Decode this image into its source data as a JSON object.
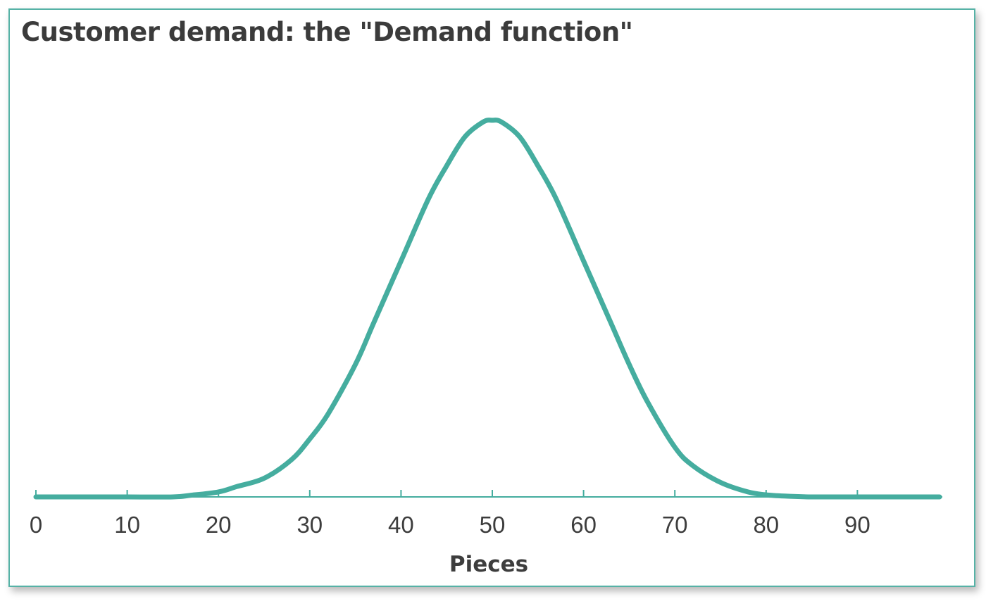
{
  "chart_data": {
    "type": "line",
    "title": "Customer demand: the \"Demand function\"",
    "xlabel": "Pieces",
    "ylabel": "",
    "xlim": [
      0,
      99
    ],
    "xticks": [
      0,
      10,
      20,
      30,
      40,
      50,
      60,
      70,
      80,
      90
    ],
    "tick_labels": [
      "0",
      "10",
      "20",
      "30",
      "40",
      "50",
      "60",
      "70",
      "80",
      "90"
    ],
    "y_axis_shown": false,
    "grid": false,
    "legend": "none",
    "colors": {
      "line": "#45ad9f",
      "axis": "#45ad9f",
      "frame": "#56b2a6",
      "text": "#3d3d3d"
    },
    "series": [
      {
        "x": [
          0,
          5,
          10,
          15,
          17,
          20,
          22,
          25,
          28,
          30,
          32,
          35,
          37,
          40,
          43,
          45,
          47,
          49,
          50,
          51,
          53,
          55,
          57,
          60,
          63,
          65,
          67,
          70,
          72,
          75,
          78,
          80,
          82,
          85,
          90,
          95,
          99
        ],
        "y": [
          0,
          0,
          0,
          0,
          0.004,
          0.012,
          0.025,
          0.045,
          0.09,
          0.14,
          0.2,
          0.32,
          0.42,
          0.57,
          0.72,
          0.8,
          0.87,
          0.906,
          0.91,
          0.906,
          0.87,
          0.8,
          0.72,
          0.57,
          0.42,
          0.32,
          0.23,
          0.12,
          0.075,
          0.035,
          0.012,
          0.005,
          0.002,
          0,
          0,
          0,
          0
        ]
      }
    ]
  }
}
